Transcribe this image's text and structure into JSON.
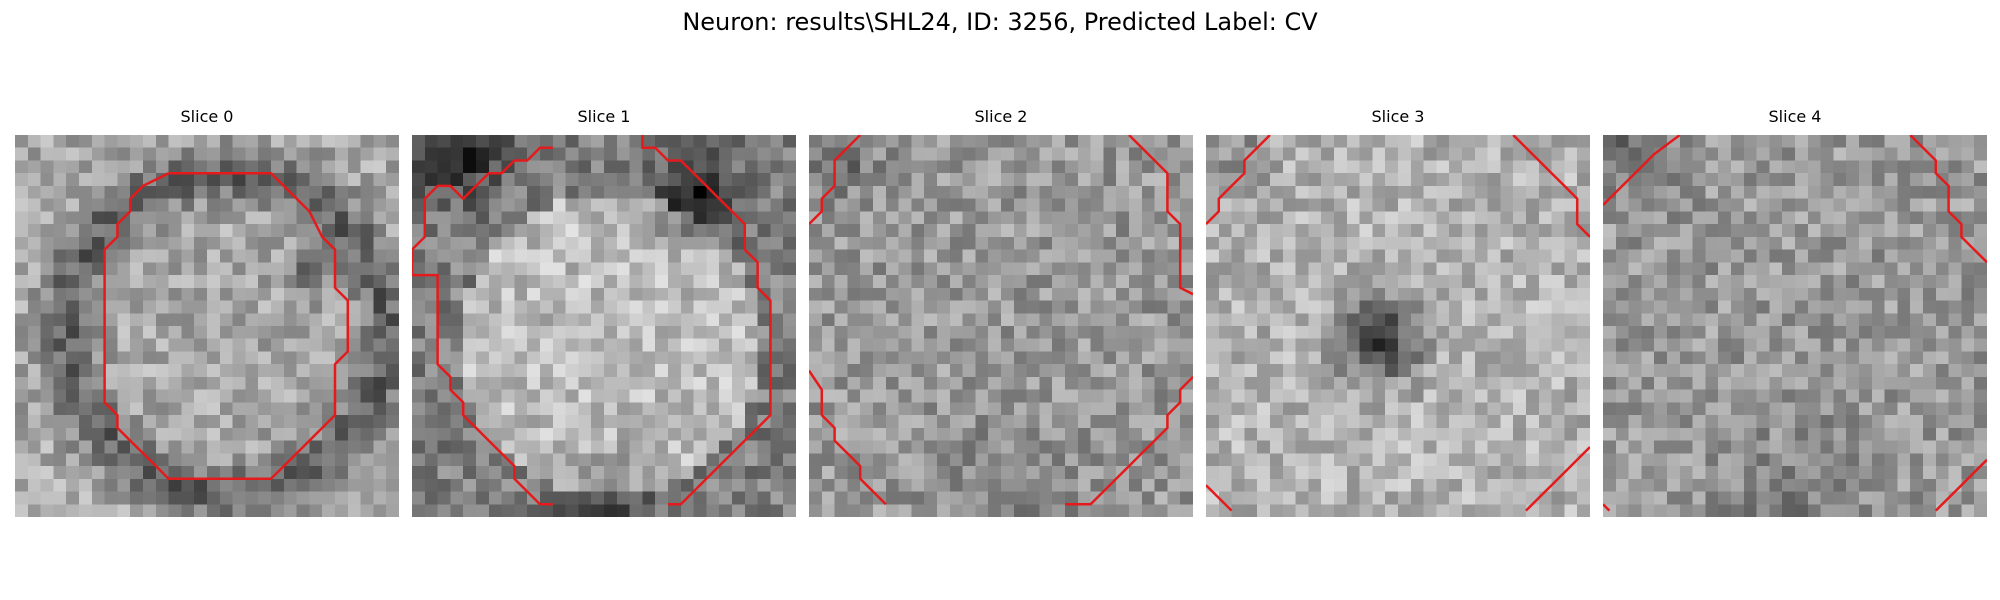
{
  "figure": {
    "title": "Neuron: results\\SHL24, ID: 3256, Predicted Label: CV",
    "colormap": "gray",
    "contour_color": "#e41a1c",
    "grid_size": 30
  },
  "panels": [
    {
      "title": "Slice 0",
      "pattern": "ring",
      "contours": [
        [
          [
            12,
            3
          ],
          [
            20,
            3
          ],
          [
            23,
            6
          ],
          [
            24,
            8
          ],
          [
            25,
            9
          ],
          [
            25,
            12
          ],
          [
            26,
            13
          ],
          [
            26,
            17
          ],
          [
            25,
            18
          ],
          [
            25,
            22
          ],
          [
            23,
            24
          ],
          [
            21,
            26
          ],
          [
            20,
            27
          ],
          [
            20,
            27
          ],
          [
            15,
            27
          ],
          [
            12,
            27
          ],
          [
            10,
            25
          ],
          [
            9,
            24
          ],
          [
            8,
            23
          ],
          [
            8,
            22
          ],
          [
            7,
            21
          ],
          [
            7,
            19
          ],
          [
            7,
            9
          ],
          [
            8,
            8
          ],
          [
            8,
            7
          ],
          [
            9,
            6
          ],
          [
            9,
            5
          ],
          [
            10,
            4
          ],
          [
            12,
            3
          ]
        ]
      ]
    },
    {
      "title": "Slice 1",
      "pattern": "blob",
      "contours": [
        [
          [
            0,
            11
          ],
          [
            2,
            11
          ],
          [
            2,
            18
          ],
          [
            3,
            19
          ],
          [
            3,
            20
          ],
          [
            4,
            21
          ],
          [
            4,
            22
          ],
          [
            5,
            23
          ],
          [
            6,
            24
          ],
          [
            8,
            26
          ],
          [
            8,
            27
          ],
          [
            9,
            28
          ],
          [
            10,
            29
          ],
          [
            11,
            29
          ]
        ],
        [
          [
            20,
            29
          ],
          [
            21,
            29
          ],
          [
            23,
            27
          ],
          [
            25,
            25
          ],
          [
            27,
            23
          ],
          [
            28,
            22
          ],
          [
            28,
            13
          ],
          [
            27,
            12
          ],
          [
            27,
            10
          ],
          [
            26,
            9
          ],
          [
            26,
            7
          ],
          [
            25,
            6
          ],
          [
            24,
            5
          ],
          [
            23,
            4
          ],
          [
            22,
            3
          ],
          [
            21,
            2
          ],
          [
            20,
            2
          ],
          [
            19,
            1
          ],
          [
            18,
            1
          ],
          [
            18,
            0
          ]
        ],
        [
          [
            0,
            11
          ],
          [
            0,
            9
          ],
          [
            1,
            8
          ],
          [
            1,
            5
          ],
          [
            2,
            4
          ],
          [
            3,
            4
          ],
          [
            4,
            5
          ],
          [
            5,
            4
          ],
          [
            6,
            3
          ],
          [
            7,
            3
          ],
          [
            8,
            2
          ],
          [
            9,
            2
          ],
          [
            10,
            1
          ],
          [
            11,
            1
          ]
        ]
      ]
    },
    {
      "title": "Slice 2",
      "pattern": "noise",
      "contours": [
        [
          [
            0,
            7
          ],
          [
            1,
            6
          ],
          [
            1,
            5
          ],
          [
            2,
            4
          ],
          [
            2,
            2
          ],
          [
            3,
            1
          ],
          [
            4,
            0
          ]
        ],
        [
          [
            25,
            0
          ],
          [
            27,
            2
          ],
          [
            28,
            3
          ],
          [
            28,
            6
          ],
          [
            29,
            7
          ],
          [
            29,
            12
          ],
          [
            30,
            12.5
          ]
        ],
        [
          [
            0,
            18.5
          ],
          [
            1,
            20
          ],
          [
            1,
            22
          ],
          [
            2,
            23
          ],
          [
            2,
            24
          ],
          [
            3,
            25
          ],
          [
            4,
            26
          ],
          [
            4,
            27
          ],
          [
            5,
            28
          ],
          [
            6,
            29
          ]
        ],
        [
          [
            20,
            29
          ],
          [
            21,
            29
          ],
          [
            22,
            29
          ],
          [
            23,
            28
          ],
          [
            24,
            27
          ],
          [
            25,
            26
          ],
          [
            26,
            25
          ],
          [
            27,
            24
          ],
          [
            28,
            23
          ],
          [
            28,
            22
          ],
          [
            29,
            21
          ],
          [
            29,
            20
          ],
          [
            30,
            19
          ]
        ]
      ]
    },
    {
      "title": "Slice 3",
      "pattern": "spot",
      "contours": [
        [
          [
            0,
            7
          ],
          [
            1,
            6
          ],
          [
            1,
            5
          ],
          [
            2,
            4
          ],
          [
            3,
            3
          ],
          [
            3,
            2
          ],
          [
            4,
            1
          ],
          [
            5,
            0
          ]
        ],
        [
          [
            24,
            0
          ],
          [
            25,
            1
          ],
          [
            26,
            2
          ],
          [
            27,
            3
          ],
          [
            28,
            4
          ],
          [
            29,
            5
          ],
          [
            29,
            7
          ],
          [
            30,
            8
          ]
        ],
        [
          [
            0,
            27.5
          ],
          [
            2,
            29.5
          ]
        ],
        [
          [
            25,
            29.5
          ],
          [
            27,
            27.5
          ],
          [
            29,
            25.5
          ],
          [
            30,
            24.5
          ]
        ]
      ]
    },
    {
      "title": "Slice 4",
      "pattern": "noise",
      "contours": [
        [
          [
            0,
            5.5
          ],
          [
            2,
            3.5
          ],
          [
            4,
            1.5
          ],
          [
            6,
            0
          ]
        ],
        [
          [
            24,
            0
          ],
          [
            25,
            1
          ],
          [
            26,
            2
          ],
          [
            26,
            3
          ],
          [
            27,
            4
          ],
          [
            27,
            6
          ],
          [
            28,
            7
          ],
          [
            28,
            8
          ],
          [
            29,
            9
          ],
          [
            30,
            10
          ]
        ],
        [
          [
            0,
            29
          ],
          [
            0.5,
            29.5
          ]
        ],
        [
          [
            26,
            29.5
          ],
          [
            28,
            27.5
          ],
          [
            29,
            26.5
          ],
          [
            30,
            25.5
          ]
        ]
      ]
    }
  ]
}
